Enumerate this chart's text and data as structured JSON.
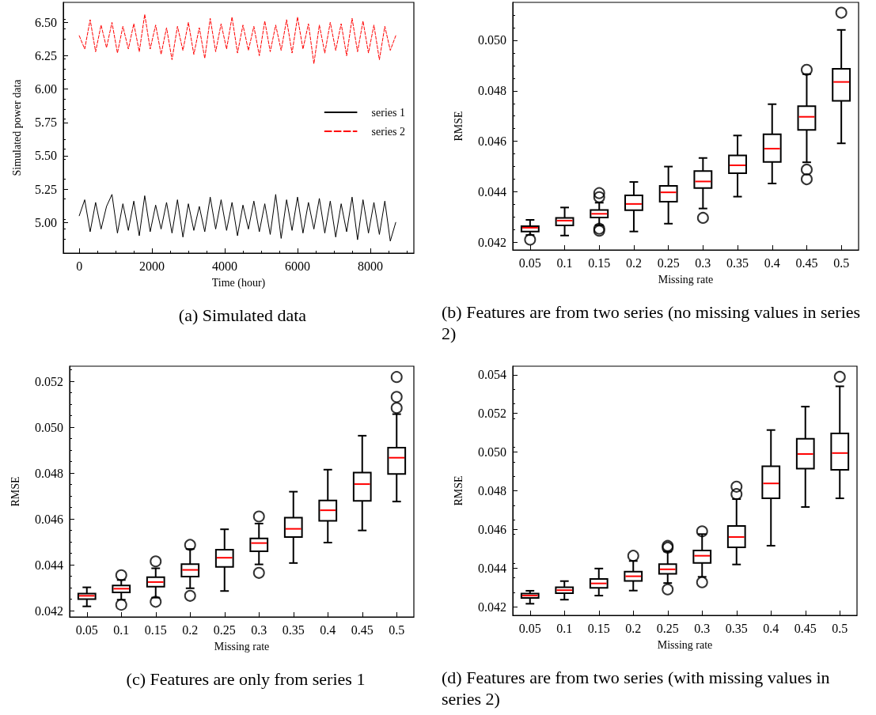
{
  "chart_data": [
    {
      "type": "line",
      "title": "(a) Simulated data",
      "xlabel": "Time (hour)",
      "ylabel": "Simulated power data",
      "legend": "right",
      "marker": "none",
      "x": [
        0,
        150,
        300,
        450,
        600,
        750,
        900,
        1050,
        1200,
        1350,
        1500,
        1650,
        1800,
        1950,
        2100,
        2250,
        2400,
        2550,
        2700,
        2850,
        3000,
        3150,
        3300,
        3450,
        3600,
        3750,
        3900,
        4050,
        4200,
        4350,
        4500,
        4650,
        4800,
        4950,
        5100,
        5250,
        5400,
        5550,
        5700,
        5850,
        6000,
        6150,
        6300,
        6450,
        6600,
        6750,
        6900,
        7050,
        7200,
        7350,
        7500,
        7650,
        7800,
        7950,
        8100,
        8250,
        8400,
        8550,
        8700
      ],
      "series": [
        {
          "name": "series 1",
          "color": "#000000",
          "line_style": "solid",
          "values": [
            5.05,
            5.17,
            4.93,
            5.15,
            4.95,
            5.12,
            5.21,
            4.92,
            5.14,
            4.94,
            5.16,
            4.9,
            5.2,
            4.93,
            5.13,
            4.95,
            5.15,
            4.92,
            5.17,
            4.89,
            5.14,
            4.94,
            5.12,
            4.93,
            5.19,
            4.95,
            5.17,
            4.94,
            5.15,
            4.9,
            5.13,
            4.95,
            5.16,
            4.93,
            5.14,
            4.91,
            5.21,
            4.88,
            5.17,
            4.94,
            5.19,
            4.92,
            5.15,
            4.95,
            5.18,
            4.92,
            5.16,
            4.89,
            5.14,
            4.93,
            5.19,
            4.87,
            5.17,
            4.92,
            5.15,
            4.91,
            5.16,
            4.86,
            5.0
          ]
        },
        {
          "name": "series 2",
          "color": "#ff0000",
          "line_style": "dashed",
          "values": [
            6.4,
            6.3,
            6.52,
            6.28,
            6.48,
            6.31,
            6.5,
            6.27,
            6.47,
            6.3,
            6.49,
            6.28,
            6.56,
            6.3,
            6.48,
            6.26,
            6.46,
            6.22,
            6.47,
            6.29,
            6.5,
            6.26,
            6.46,
            6.23,
            6.53,
            6.28,
            6.49,
            6.3,
            6.54,
            6.27,
            6.48,
            6.29,
            6.47,
            6.25,
            6.51,
            6.28,
            6.48,
            6.29,
            6.52,
            6.27,
            6.54,
            6.3,
            6.49,
            6.19,
            6.48,
            6.27,
            6.5,
            6.29,
            6.49,
            6.25,
            6.53,
            6.28,
            6.51,
            6.27,
            6.48,
            6.22,
            6.47,
            6.29,
            6.4
          ]
        }
      ],
      "xlim": [
        -438,
        9198
      ],
      "xticks": [
        0,
        2000,
        4000,
        6000,
        8000
      ],
      "ylim": [
        4.77,
        6.65
      ],
      "yticks": [
        {
          "value": 5,
          "label": "5.00"
        },
        {
          "value": 5.25,
          "label": "5.25"
        },
        {
          "value": 5.5,
          "label": "5.50"
        },
        {
          "value": 5.75,
          "label": "5.75"
        },
        {
          "value": 6,
          "label": "6.00"
        },
        {
          "value": 6.25,
          "label": "6.25"
        },
        {
          "value": 6.5,
          "label": "6.50"
        }
      ]
    },
    {
      "type": "box",
      "title": "(b) Features are from two series (no missing values in series 2)",
      "xlabel": "Missing rate",
      "ylabel": "RMSE",
      "categories": [
        "0.05",
        "0.1",
        "0.15",
        "0.2",
        "0.25",
        "0.3",
        "0.35",
        "0.4",
        "0.45",
        "0.5"
      ],
      "boxes": [
        {
          "low": 0.04229,
          "q1": 0.04243,
          "median": 0.04258,
          "q3": 0.04264,
          "high": 0.04289,
          "outliers": [
            0.04211
          ]
        },
        {
          "low": 0.04227,
          "q1": 0.04267,
          "median": 0.04286,
          "q3": 0.04297,
          "high": 0.04338
        },
        {
          "low": 0.04268,
          "q1": 0.04298,
          "median": 0.04313,
          "q3": 0.04328,
          "high": 0.04357,
          "outliers": [
            0.04395,
            0.04379,
            0.04254,
            0.04246
          ]
        },
        {
          "low": 0.04243,
          "q1": 0.04327,
          "median": 0.04352,
          "q3": 0.04386,
          "high": 0.04439
        },
        {
          "low": 0.04274,
          "q1": 0.04361,
          "median": 0.04398,
          "q3": 0.04424,
          "high": 0.045
        },
        {
          "low": 0.04334,
          "q1": 0.04415,
          "median": 0.04441,
          "q3": 0.04482,
          "high": 0.04534,
          "outliers": [
            0.04297
          ]
        },
        {
          "low": 0.04381,
          "q1": 0.04474,
          "median": 0.04505,
          "q3": 0.04544,
          "high": 0.04623
        },
        {
          "low": 0.04433,
          "q1": 0.04518,
          "median": 0.04571,
          "q3": 0.04628,
          "high": 0.04747
        },
        {
          "low": 0.04517,
          "q1": 0.04645,
          "median": 0.04697,
          "q3": 0.04739,
          "high": 0.04866,
          "outliers": [
            0.04883,
            0.04488,
            0.0445
          ]
        },
        {
          "low": 0.04592,
          "q1": 0.0476,
          "median": 0.04835,
          "q3": 0.04887,
          "high": 0.05041,
          "outliers": [
            0.05109
          ]
        }
      ],
      "ylim": [
        0.0417,
        0.0515
      ],
      "yticks": [
        0.042,
        0.044,
        0.046,
        0.048,
        {
          "value": 0.05,
          "label": "0.050"
        }
      ]
    },
    {
      "type": "box",
      "title": "(c) Features are only from series 1",
      "xlabel": "Missing rate",
      "ylabel": "RMSE",
      "categories": [
        "0.05",
        "0.1",
        "0.15",
        "0.2",
        "0.25",
        "0.3",
        "0.35",
        "0.4",
        "0.45",
        "0.5"
      ],
      "boxes": [
        {
          "low": 0.04219,
          "q1": 0.04251,
          "median": 0.04265,
          "q3": 0.04275,
          "high": 0.04302
        },
        {
          "low": 0.04248,
          "q1": 0.0428,
          "median": 0.04296,
          "q3": 0.0431,
          "high": 0.04334,
          "outliers": [
            0.04355,
            0.04226
          ]
        },
        {
          "low": 0.04257,
          "q1": 0.04305,
          "median": 0.04325,
          "q3": 0.04346,
          "high": 0.04385,
          "outliers": [
            0.04415,
            0.04239
          ]
        },
        {
          "low": 0.04298,
          "q1": 0.04349,
          "median": 0.04378,
          "q3": 0.04403,
          "high": 0.04469,
          "outliers": [
            0.04487,
            0.04265
          ]
        },
        {
          "low": 0.04286,
          "q1": 0.04391,
          "median": 0.04431,
          "q3": 0.04466,
          "high": 0.04555
        },
        {
          "low": 0.04402,
          "q1": 0.04459,
          "median": 0.04495,
          "q3": 0.04515,
          "high": 0.0458,
          "outliers": [
            0.04611,
            0.04365
          ]
        },
        {
          "low": 0.04408,
          "q1": 0.04521,
          "median": 0.04557,
          "q3": 0.04606,
          "high": 0.04719
        },
        {
          "low": 0.04497,
          "q1": 0.04592,
          "median": 0.04638,
          "q3": 0.04681,
          "high": 0.04815
        },
        {
          "low": 0.0455,
          "q1": 0.04679,
          "median": 0.04752,
          "q3": 0.04802,
          "high": 0.04963
        },
        {
          "low": 0.04676,
          "q1": 0.04796,
          "median": 0.04867,
          "q3": 0.04911,
          "high": 0.05057,
          "outliers": [
            0.05219,
            0.05132,
            0.05084
          ]
        }
      ],
      "ylim": [
        0.04173,
        0.05266
      ],
      "yticks": [
        0.042,
        0.044,
        0.046,
        0.048,
        {
          "value": 0.05,
          "label": "0.050"
        },
        0.052
      ]
    },
    {
      "type": "box",
      "title": "(d) Features are from two series (with missing values in series 2)",
      "xlabel": "Missing rate",
      "ylabel": "RMSE",
      "categories": [
        "0.05",
        "0.1",
        "0.15",
        "0.2",
        "0.25",
        "0.3",
        "0.35",
        "0.4",
        "0.45",
        "0.5"
      ],
      "boxes": [
        {
          "low": 0.04216,
          "q1": 0.04246,
          "median": 0.04258,
          "q3": 0.04268,
          "high": 0.04283
        },
        {
          "low": 0.04237,
          "q1": 0.0427,
          "median": 0.04286,
          "q3": 0.04301,
          "high": 0.04333
        },
        {
          "low": 0.04258,
          "q1": 0.04298,
          "median": 0.04321,
          "q3": 0.04344,
          "high": 0.04398
        },
        {
          "low": 0.04284,
          "q1": 0.04334,
          "median": 0.04358,
          "q3": 0.04382,
          "high": 0.04437,
          "outliers": [
            0.04464
          ]
        },
        {
          "low": 0.04323,
          "q1": 0.04371,
          "median": 0.04394,
          "q3": 0.04421,
          "high": 0.04486,
          "outliers": [
            0.04515,
            0.04506,
            0.0429
          ]
        },
        {
          "low": 0.04355,
          "q1": 0.04427,
          "median": 0.04464,
          "q3": 0.04491,
          "high": 0.04576,
          "outliers": [
            0.0459,
            0.04327
          ]
        },
        {
          "low": 0.04419,
          "q1": 0.04508,
          "median": 0.04561,
          "q3": 0.04618,
          "high": 0.04757,
          "outliers": [
            0.04821,
            0.04783
          ]
        },
        {
          "low": 0.04516,
          "q1": 0.04761,
          "median": 0.04838,
          "q3": 0.04927,
          "high": 0.05114
        },
        {
          "low": 0.04716,
          "q1": 0.04915,
          "median": 0.0499,
          "q3": 0.05069,
          "high": 0.05235
        },
        {
          "low": 0.04761,
          "q1": 0.04908,
          "median": 0.04995,
          "q3": 0.05096,
          "high": 0.0534,
          "outliers": [
            0.05389
          ]
        }
      ],
      "ylim": [
        0.04156,
        0.05444
      ],
      "yticks": [
        0.042,
        0.044,
        0.046,
        0.048,
        {
          "value": 0.05,
          "label": "0.050"
        },
        0.052,
        0.054
      ]
    }
  ]
}
